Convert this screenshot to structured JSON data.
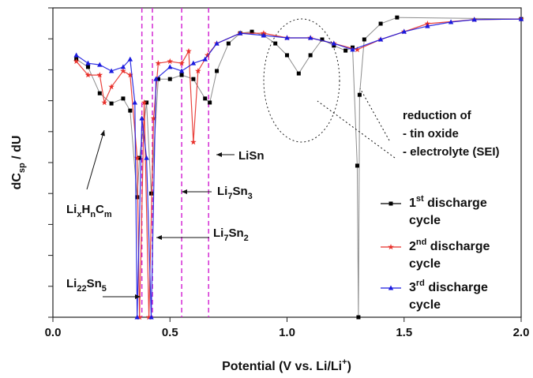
{
  "chart_data": {
    "type": "line",
    "x_label": "Potential (V vs. Li/Li+)",
    "y_label": "dCsp / dU",
    "xlim": [
      0,
      2
    ],
    "ylim": [
      0,
      10
    ],
    "xticks": [
      {
        "value": 0,
        "label": "0.0"
      },
      0.5,
      {
        "value": 1,
        "label": "1.0"
      },
      1.5,
      {
        "value": 2,
        "label": "2.0"
      }
    ],
    "yticks": [
      0,
      1,
      2,
      3,
      4,
      5,
      6,
      7,
      8,
      9,
      10
    ],
    "reference_lines": {
      "color": "#d42ad4",
      "x": [
        0.38,
        0.425,
        0.55,
        0.665
      ]
    },
    "series": [
      {
        "name": "1st discharge cycle",
        "color": "#000000",
        "marker": "square",
        "x": [
          0.1,
          0.15,
          0.2,
          0.25,
          0.3,
          0.33,
          0.36,
          0.37,
          0.4,
          0.42,
          0.45,
          0.5,
          0.55,
          0.6,
          0.65,
          0.67,
          0.7,
          0.75,
          0.8,
          0.85,
          0.9,
          0.95,
          1.0,
          1.05,
          1.1,
          1.15,
          1.2,
          1.25,
          1.28,
          1.3,
          1.305,
          1.31,
          1.33,
          1.4,
          1.47,
          2.0
        ],
        "values": [
          8.34,
          8.09,
          7.24,
          6.91,
          7.07,
          6.68,
          3.88,
          5.15,
          6.94,
          4.0,
          7.7,
          7.7,
          7.83,
          7.7,
          7.07,
          6.94,
          7.96,
          8.85,
          9.18,
          9.23,
          9.11,
          8.85,
          8.47,
          7.88,
          8.47,
          8.98,
          8.78,
          8.62,
          8.72,
          4.9,
          0,
          7.19,
          8.98,
          9.49,
          9.69,
          9.64
        ]
      },
      {
        "name": "2nd discharge cycle",
        "color": "#e8302a",
        "marker": "star",
        "x": [
          0.1,
          0.15,
          0.2,
          0.22,
          0.25,
          0.3,
          0.33,
          0.36,
          0.37,
          0.39,
          0.41,
          0.43,
          0.45,
          0.5,
          0.55,
          0.58,
          0.6,
          0.62,
          0.66,
          0.7,
          0.8,
          0.9,
          1.0,
          1.1,
          1.2,
          1.3,
          1.4,
          1.5,
          1.6,
          1.8,
          2.0
        ],
        "values": [
          8.27,
          7.83,
          7.83,
          6.94,
          7.45,
          7.96,
          7.83,
          5.15,
          0,
          6.94,
          0,
          6.43,
          8.21,
          8.27,
          8.21,
          8.6,
          5.66,
          7.96,
          8.47,
          8.85,
          9.18,
          9.18,
          9.03,
          9.03,
          8.85,
          8.65,
          8.98,
          9.23,
          9.49,
          9.62,
          9.64
        ]
      },
      {
        "name": "3rd discharge cycle",
        "color": "#1a1adf",
        "marker": "triangle",
        "x": [
          0.1,
          0.15,
          0.2,
          0.25,
          0.3,
          0.33,
          0.35,
          0.36,
          0.38,
          0.4,
          0.42,
          0.44,
          0.5,
          0.55,
          0.6,
          0.65,
          0.7,
          0.8,
          0.9,
          1.0,
          1.1,
          1.2,
          1.28,
          1.4,
          1.5,
          1.6,
          1.7,
          1.8,
          2.0
        ],
        "values": [
          8.47,
          8.21,
          8.16,
          7.96,
          8.09,
          8.34,
          6.94,
          0,
          6.43,
          5.15,
          0,
          7.7,
          8.09,
          7.96,
          8.21,
          8.34,
          8.85,
          9.18,
          9.11,
          9.03,
          9.03,
          8.85,
          8.65,
          8.98,
          9.23,
          9.41,
          9.54,
          9.62,
          9.64
        ]
      }
    ],
    "annotations": [
      "reduction of",
      "- tin oxide",
      "- electrolyte (SEI)",
      "LiSn",
      "Li7Sn3",
      "Li7Sn2",
      "LixHnCm",
      "Li22Sn5"
    ]
  }
}
